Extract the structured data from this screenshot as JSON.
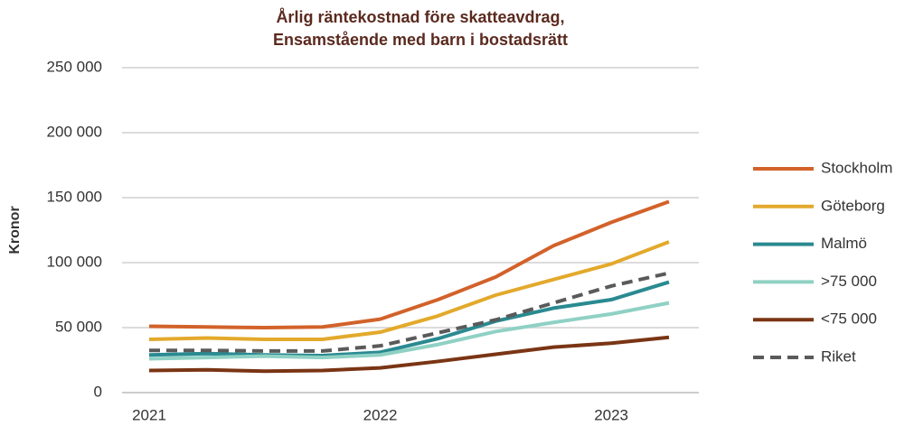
{
  "chart_data": {
    "type": "line",
    "title": [
      "Årlig räntekostnad före skatteavdrag,",
      "Ensamstående med barn i bostadsrätt"
    ],
    "ylabel": "Kronor",
    "categories": [
      "2021",
      null,
      null,
      null,
      "2022",
      null,
      null,
      null,
      "2023",
      null
    ],
    "ylim": [
      0,
      250000
    ],
    "yticks": [
      0,
      {
        "value": 50000,
        "label": "50 000"
      },
      {
        "value": 100000,
        "label": "100 000"
      },
      {
        "value": 150000,
        "label": "150 000"
      },
      {
        "value": 200000,
        "label": "200 000"
      },
      {
        "value": 250000,
        "label": "250 000"
      }
    ],
    "grid": true,
    "legend": "right",
    "series": [
      {
        "name": "Stockholm",
        "color": "#d2622a",
        "values": [
          51000,
          50500,
          50000,
          50500,
          56500,
          71500,
          89000,
          113000,
          131000,
          147000
        ]
      },
      {
        "name": "Göteborg",
        "color": "#e3a92c",
        "values": [
          41000,
          42000,
          41000,
          41000,
          46500,
          59000,
          75000,
          87000,
          99000,
          116000
        ]
      },
      {
        "name": "Malmö",
        "color": "#2a8a91",
        "values": [
          29000,
          30000,
          29000,
          28500,
          31000,
          41500,
          55000,
          65000,
          71500,
          85000
        ]
      },
      {
        "name": ">75 000",
        "color": "#8fd1c4",
        "values": [
          26000,
          27000,
          28000,
          27000,
          29000,
          37000,
          47000,
          54000,
          60500,
          69000
        ]
      },
      {
        "name": "<75 000",
        "color": "#7a3514",
        "values": [
          17000,
          17500,
          16500,
          17000,
          19000,
          24000,
          29500,
          35000,
          38000,
          42500
        ]
      },
      {
        "name": "Riket",
        "color": "#5a5a5a",
        "dashed": true,
        "values": [
          32500,
          32500,
          32000,
          32000,
          36000,
          46000,
          56000,
          69000,
          82000,
          92000
        ]
      }
    ]
  }
}
